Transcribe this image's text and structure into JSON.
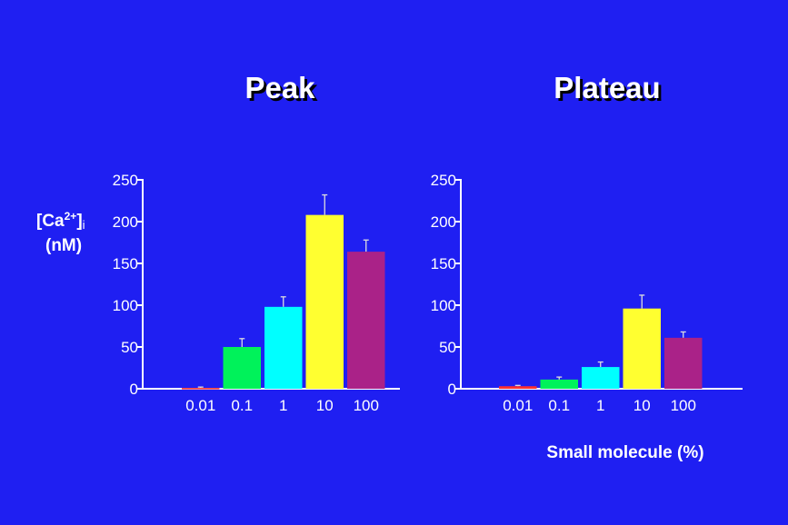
{
  "chart_data": [
    {
      "type": "bar",
      "title": "Peak",
      "ylabel": "[Ca2+]i (nM)",
      "ylabel_parts": {
        "main": "[Ca",
        "sup": "2+",
        "close": "]",
        "sub": "i",
        "unit": "(nM)"
      },
      "xlabel": "",
      "categories": [
        "0.01",
        "0.1",
        "1",
        "10",
        "100"
      ],
      "values": [
        1,
        50,
        98,
        208,
        164
      ],
      "errors": [
        1,
        10,
        12,
        24,
        14
      ],
      "colors": [
        "#ff3030",
        "#00f25a",
        "#00ffff",
        "#ffff30",
        "#aa2288"
      ],
      "ylim": [
        0,
        250
      ],
      "yticks": [
        0,
        50,
        100,
        150,
        200,
        250
      ],
      "grid": false
    },
    {
      "type": "bar",
      "title": "Plateau",
      "xlabel": "Small molecule  (%)",
      "categories": [
        "0.01",
        "0.1",
        "1",
        "10",
        "100"
      ],
      "values": [
        3,
        11,
        26,
        96,
        61
      ],
      "errors": [
        1,
        3,
        6,
        16,
        7
      ],
      "colors": [
        "#ff3030",
        "#00f25a",
        "#00ffff",
        "#ffff30",
        "#aa2288"
      ],
      "ylim": [
        0,
        250
      ],
      "yticks": [
        0,
        50,
        100,
        150,
        200,
        250
      ],
      "grid": false
    }
  ]
}
